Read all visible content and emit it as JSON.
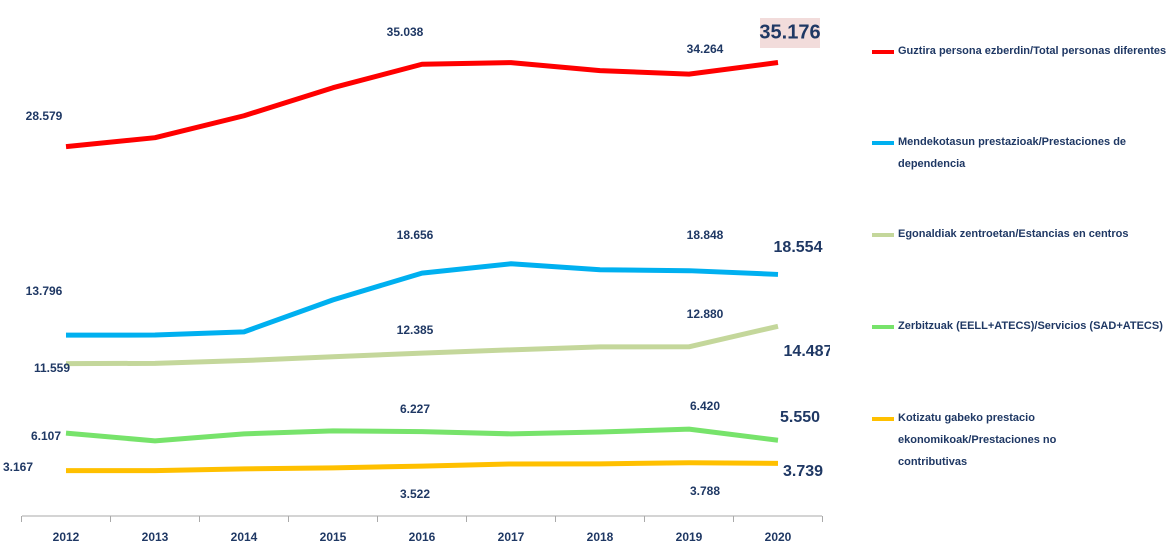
{
  "chart_data": {
    "type": "line",
    "categories": [
      "2012",
      "2013",
      "2014",
      "2015",
      "2016",
      "2017",
      "2018",
      "2019",
      "2020"
    ],
    "ylim": [
      0,
      40000
    ],
    "series": [
      {
        "name": "Guztira persona ezberdin/Total personas diferentes",
        "color": "#ff0000",
        "values": [
          28579,
          29280,
          31000,
          33200,
          35038,
          35170,
          34540,
          34264,
          35176
        ],
        "value_labels": [
          "28.579",
          null,
          null,
          null,
          "35.038",
          null,
          null,
          "34.264",
          "35.176"
        ]
      },
      {
        "name": "Mendekotasun prestazioak/Prestaciones de dependencia",
        "color": "#00b0f0",
        "values": [
          13796,
          13800,
          14050,
          16560,
          18656,
          19390,
          18920,
          18848,
          18554
        ],
        "value_labels": [
          "13.796",
          null,
          null,
          null,
          "18.656",
          null,
          null,
          "18.848",
          "18.554"
        ]
      },
      {
        "name": "Egonaldiak zentroetan/Estancias en centros",
        "color": "#c4d79b",
        "values": [
          11559,
          11580,
          11800,
          12100,
          12385,
          12640,
          12870,
          12880,
          14487
        ],
        "value_labels": [
          "11.559",
          null,
          null,
          null,
          "12.385",
          null,
          null,
          "12.880",
          "14.487"
        ]
      },
      {
        "name": "Zerbitzuak (EELL+ATECS)/Servicios (SAD+ATECS)",
        "color": "#77e36b",
        "values": [
          6107,
          5500,
          6050,
          6280,
          6227,
          6050,
          6200,
          6420,
          5550
        ],
        "value_labels": [
          "6.107",
          null,
          null,
          null,
          "6.227",
          null,
          null,
          "6.420",
          "5.550"
        ]
      },
      {
        "name": "Kotizatu gabeko prestacio ekonomikoak/Prestaciones no contributivas",
        "color": "#ffc000",
        "values": [
          3167,
          3170,
          3300,
          3380,
          3522,
          3690,
          3700,
          3788,
          3739
        ],
        "value_labels": [
          "3.167",
          null,
          null,
          null,
          "3.522",
          null,
          null,
          "3.788",
          "3.739"
        ]
      }
    ]
  }
}
